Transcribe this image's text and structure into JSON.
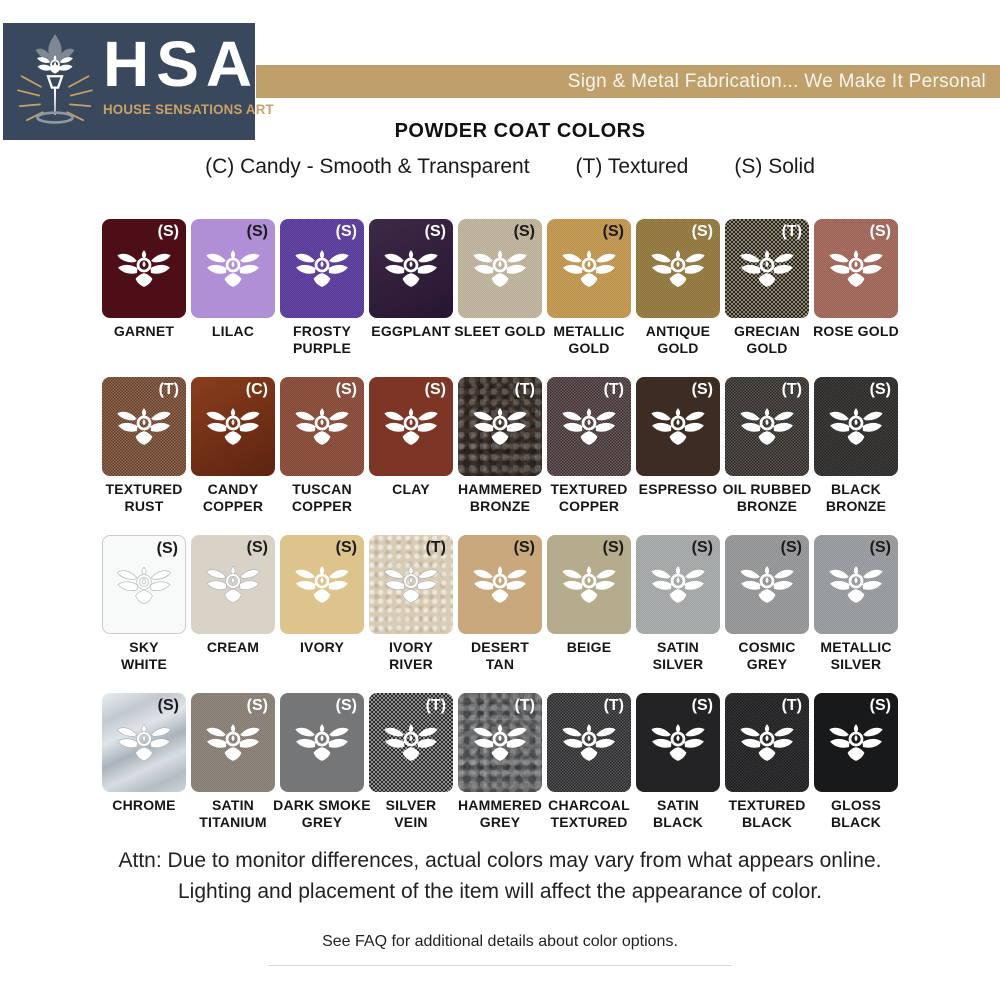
{
  "header": {
    "logo": {
      "acronym": "HSA",
      "name": "HOUSE SENSATIONS ART",
      "emblem_icon": "torch-lotus-emblem-icon",
      "bg_color": "#39485c",
      "accent_color": "#c9a268"
    },
    "banner": {
      "text": "Sign & Metal Fabrication... We Make It Personal",
      "bg_color": "#bfa06a",
      "text_color": "#f8f5ee"
    }
  },
  "title": "POWDER COAT COLORS",
  "legend": {
    "items": [
      "(C) Candy - Smooth & Transparent",
      "(T) Textured",
      "(S) Solid"
    ]
  },
  "swatches": {
    "icon": "lotus-icon",
    "tiles": [
      {
        "label": "GARNET",
        "code": "(S)",
        "color": "#4d0e18",
        "code_color": "#ffffff",
        "texture": "none"
      },
      {
        "label": "LILAC",
        "code": "(S)",
        "color": "#b18fd6",
        "code_color": "#1a1a1a",
        "texture": "none"
      },
      {
        "label": "FROSTY\nPURPLE",
        "code": "(S)",
        "color": "#5b3c9f",
        "code_color": "#ffffff",
        "texture": "metal"
      },
      {
        "label": "EGGPLANT",
        "code": "(S)",
        "color": "#261531",
        "color2": "#3e2947",
        "code_color": "#ffffff",
        "texture": "none"
      },
      {
        "label": "SLEET GOLD",
        "code": "(S)",
        "color": "#c3b9a0",
        "code_color": "#1a1a1a",
        "texture": "metal"
      },
      {
        "label": "METALLIC\nGOLD",
        "code": "(S)",
        "color": "#c59a50",
        "code_color": "#1a1a1a",
        "texture": "metal"
      },
      {
        "label": "ANTIQUE\nGOLD",
        "code": "(S)",
        "color": "#967a3e",
        "code_color": "#ffffff",
        "texture": "metal"
      },
      {
        "label": "GRECIAN\nGOLD",
        "code": "(T)",
        "color": "#4a4129",
        "code_color": "#ffffff",
        "texture": "strong"
      },
      {
        "label": "ROSE GOLD",
        "code": "(S)",
        "color": "#a5675a",
        "code_color": "#ffffff",
        "texture": "metal"
      },
      {
        "label": "TEXTURED\nRUST",
        "code": "(T)",
        "color": "#7b4a2f",
        "code_color": "#ffffff",
        "texture": "med"
      },
      {
        "label": "CANDY\nCOPPER",
        "code": "(C)",
        "color": "#5c2410",
        "color2": "#8a3e1d",
        "code_color": "#ffffff",
        "texture": "none"
      },
      {
        "label": "TUSCAN\nCOPPER",
        "code": "(S)",
        "color": "#8c4b38",
        "code_color": "#ffffff",
        "texture": "metal"
      },
      {
        "label": "CLAY",
        "code": "(S)",
        "color": "#7d3526",
        "code_color": "#ffffff",
        "texture": "none"
      },
      {
        "label": "HAMMERED\nBRONZE",
        "code": "(T)",
        "color": "#3e332c",
        "code_color": "#ffffff",
        "texture": "hammer"
      },
      {
        "label": "TEXTURED\nCOPPER",
        "code": "(T)",
        "color": "#4b383b",
        "code_color": "#ffffff",
        "texture": "med"
      },
      {
        "label": "ESPRESSO",
        "code": "(S)",
        "color": "#3c2c22",
        "code_color": "#ffffff",
        "texture": "none"
      },
      {
        "label": "OIL RUBBED\nBRONZE",
        "code": "(T)",
        "color": "#35302b",
        "code_color": "#ffffff",
        "texture": "med"
      },
      {
        "label": "BLACK\nBRONZE",
        "code": "(S)",
        "color": "#2c2a28",
        "code_color": "#ffffff",
        "texture": "fine"
      },
      {
        "label": "SKY\nWHITE",
        "code": "(S)",
        "color": "#f8f9f9",
        "border": "#c9cbcc",
        "code_color": "#1a1a1a",
        "texture": "none",
        "lotus_outline": true
      },
      {
        "label": "CREAM",
        "code": "(S)",
        "color": "#d9d3c7",
        "code_color": "#1a1a1a",
        "texture": "none",
        "lotus_outline": true
      },
      {
        "label": "IVORY",
        "code": "(S)",
        "color": "#ddc48d",
        "code_color": "#1a1a1a",
        "texture": "none"
      },
      {
        "label": "IVORY\nRIVER",
        "code": "(T)",
        "color": "#d9ccb5",
        "code_color": "#1a1a1a",
        "texture": "bump",
        "lotus_outline": true
      },
      {
        "label": "DESERT\nTAN",
        "code": "(S)",
        "color": "#c9a87d",
        "code_color": "#1a1a1a",
        "texture": "none"
      },
      {
        "label": "BEIGE",
        "code": "(S)",
        "color": "#b4ac8c",
        "code_color": "#1a1a1a",
        "texture": "none"
      },
      {
        "label": "SATIN\nSILVER",
        "code": "(S)",
        "color": "#a9acae",
        "code_color": "#1a1a1a",
        "texture": "metal"
      },
      {
        "label": "COSMIC\nGREY",
        "code": "(S)",
        "color": "#98999b",
        "code_color": "#1a1a1a",
        "texture": "metal"
      },
      {
        "label": "METALLIC\nSILVER",
        "code": "(S)",
        "color": "#9b9ea1",
        "code_color": "#1a1a1a",
        "texture": "metal"
      },
      {
        "label": "CHROME",
        "code": "(S)",
        "color": "#c3c9ce",
        "code_color": "#1a1a1a",
        "texture": "chrome",
        "lotus_outline": true
      },
      {
        "label": "SATIN\nTITANIUM",
        "code": "(S)",
        "color": "#8b8277",
        "code_color": "#ffffff",
        "texture": "metal"
      },
      {
        "label": "DARK SMOKE\nGREY",
        "code": "(S)",
        "color": "#747678",
        "code_color": "#ffffff",
        "texture": "none"
      },
      {
        "label": "SILVER\nVEIN",
        "code": "(T)",
        "color": "#4c4c4c",
        "code_color": "#ffffff",
        "texture": "strong"
      },
      {
        "label": "HAMMERED\nGREY",
        "code": "(T)",
        "color": "#6b6d6f",
        "code_color": "#ffffff",
        "texture": "hammer"
      },
      {
        "label": "CHARCOAL\nTEXTURED",
        "code": "(T)",
        "color": "#2f3032",
        "code_color": "#ffffff",
        "texture": "med"
      },
      {
        "label": "SATIN\nBLACK",
        "code": "(S)",
        "color": "#232325",
        "code_color": "#ffffff",
        "texture": "none"
      },
      {
        "label": "TEXTURED\nBLACK",
        "code": "(T)",
        "color": "#1e1f21",
        "code_color": "#ffffff",
        "texture": "fine"
      },
      {
        "label": "GLOSS\nBLACK",
        "code": "(S)",
        "color": "#18191b",
        "code_color": "#ffffff",
        "texture": "none"
      }
    ]
  },
  "footer": {
    "attn_line1": "Attn: Due to monitor differences, actual colors may vary from what appears online.",
    "attn_line2": "Lighting and placement of the item will affect the appearance of color.",
    "faq_note": "See FAQ for additional details about color options."
  }
}
